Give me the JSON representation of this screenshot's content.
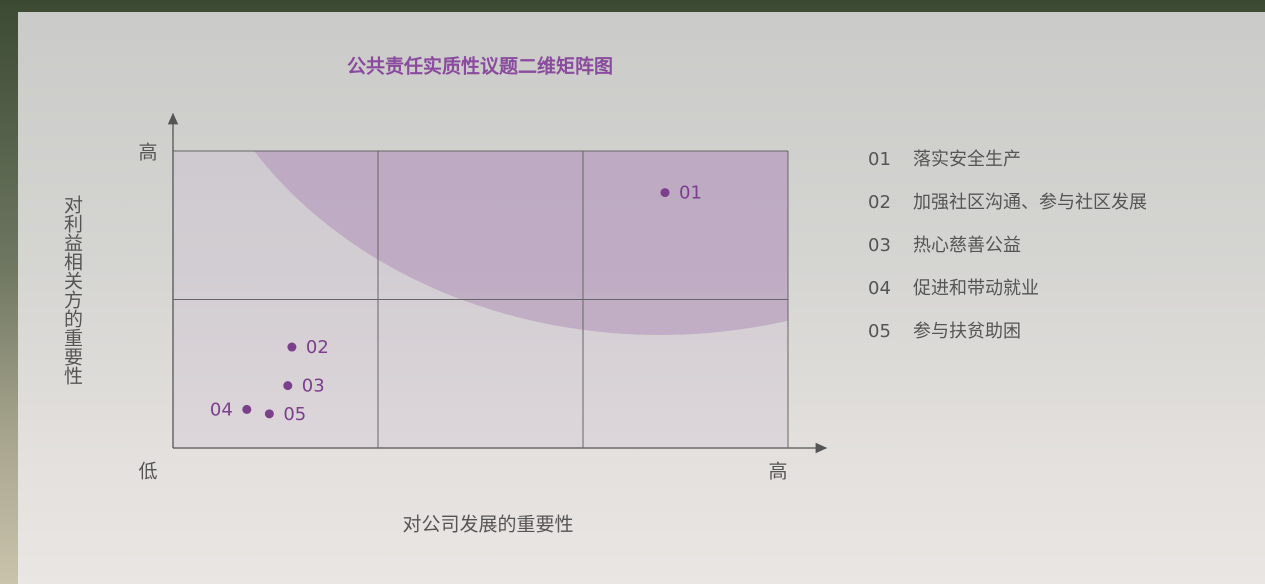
{
  "chart_data": {
    "type": "scatter",
    "title": "公共责任实质性议题二维矩阵图",
    "x_label": "对公司发展的重要性",
    "y_label": "对利益相关方的重要性",
    "xlim": [
      0,
      3
    ],
    "ylim": [
      0,
      2
    ],
    "xticks": [
      {
        "value": 0,
        "label": "低"
      },
      {
        "value": 3,
        "label": "高"
      }
    ],
    "yticks": [
      {
        "value": 2,
        "label": "高"
      }
    ],
    "xgrid": [
      1,
      2
    ],
    "ygrid": [
      1
    ],
    "color": "#7b3f8c",
    "labels": [
      "01",
      "02",
      "03",
      "04",
      "05"
    ],
    "names": [
      "落实安全生产",
      "加强社区沟通、参与社区发展",
      "热心慈善公益",
      "促进和带动就业",
      "参与扶贫助困"
    ],
    "x": [
      2.4,
      0.58,
      0.56,
      0.36,
      0.47
    ],
    "y": [
      1.72,
      0.68,
      0.42,
      0.26,
      0.23
    ]
  }
}
